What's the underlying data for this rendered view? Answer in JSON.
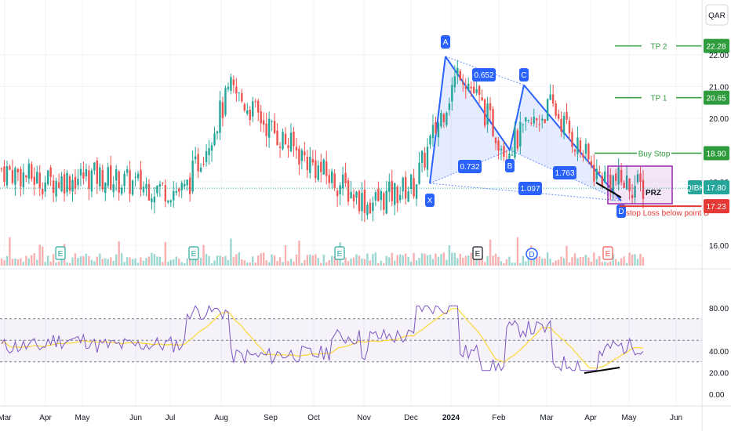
{
  "chart_data": {
    "type": "candlestick",
    "currency": "QAR",
    "symbol_badge": "QIBK",
    "last_price": "17.80",
    "x_axis_labels": [
      "Mar",
      "Apr",
      "May",
      "Jun",
      "Jul",
      "Aug",
      "Sep",
      "Oct",
      "Nov",
      "Dec",
      "2024",
      "Feb",
      "Mar",
      "Apr",
      "May",
      "Jun"
    ],
    "price_axis_ticks": [
      "22.00",
      "21.00",
      "20.00",
      "18.00",
      "16.00"
    ],
    "price_range": [
      15.6,
      22.9
    ],
    "approx_close_path": [
      {
        "date": "Mar 2023",
        "close": 18.4
      },
      {
        "date": "Apr 2023",
        "close": 18.0
      },
      {
        "date": "May 2023",
        "close": 18.2
      },
      {
        "date": "Jun 2023",
        "close": 17.9
      },
      {
        "date": "Jul 2023",
        "close": 17.7
      },
      {
        "date": "Aug 2023",
        "close": 20.9
      },
      {
        "date": "Sep 2023",
        "close": 19.5
      },
      {
        "date": "Oct 2023",
        "close": 18.3
      },
      {
        "date": "Nov 2023",
        "close": 17.3
      },
      {
        "date": "Dec 2023",
        "close": 17.9
      },
      {
        "date": "Jan 2024",
        "close": 21.6
      },
      {
        "date": "Feb 2024",
        "close": 19.0
      },
      {
        "date": "Mar 2024",
        "close": 20.4
      },
      {
        "date": "Apr 2024",
        "close": 18.2
      },
      {
        "date": "May 2024",
        "close": 17.8
      }
    ],
    "pattern": {
      "points": {
        "X": 17.95,
        "A": 21.95,
        "B": 19.0,
        "C": 21.05,
        "D": 17.4
      },
      "point_labels": [
        "X",
        "A",
        "B",
        "C",
        "D"
      ],
      "ratios": [
        "0.652",
        "0.732",
        "1.763",
        "1.097"
      ],
      "prz_label": "PRZ"
    },
    "levels": [
      {
        "label": "TP 2",
        "price": "22.28",
        "color": "#2e9c3c"
      },
      {
        "label": "TP 1",
        "price": "20.65",
        "color": "#2e9c3c"
      },
      {
        "label": "Buy Stop",
        "price": "18.90",
        "color": "#2e9c3c"
      },
      {
        "label": "stop Loss below point D",
        "price": "17.23",
        "color": "#e53935"
      }
    ],
    "event_markers": [
      "E",
      "E",
      "E",
      "E",
      "D",
      "E"
    ],
    "rsi": {
      "ticks": [
        "80.00",
        "40.00",
        "20.00",
        "0.00"
      ],
      "range": [
        0,
        100
      ],
      "upper_band": 70,
      "lower_band": 30,
      "mid_band": 50
    },
    "colors": {
      "up": "#26a69a",
      "down": "#ef5350",
      "pattern": "#2962ff",
      "prz_border": "#9c27b0",
      "rsi_line": "#7e57c2",
      "rsi_ma": "#fdd835"
    }
  }
}
